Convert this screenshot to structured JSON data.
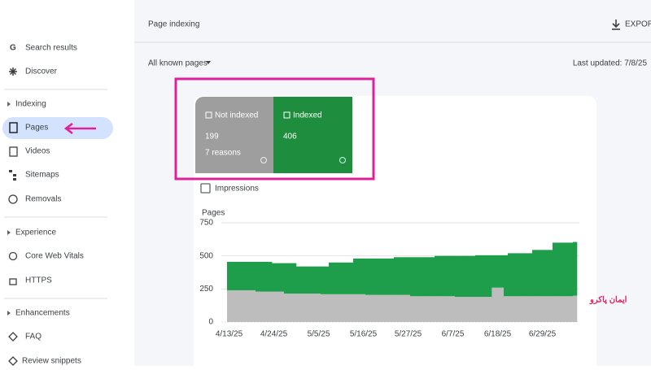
{
  "sidebar": {
    "top": [
      "Search results",
      "Discover"
    ],
    "sections": [
      {
        "title": "Indexing",
        "items": [
          "Pages",
          "Videos",
          "Sitemaps",
          "Removals"
        ]
      },
      {
        "title": "Experience",
        "items": [
          "Core Web Vitals",
          "HTTPS"
        ]
      },
      {
        "title": "Enhancements",
        "items": [
          "FAQ",
          "Review snippets"
        ]
      }
    ]
  },
  "header": {
    "title": "Page indexing",
    "export": "EXPORT"
  },
  "filter": "All known pages",
  "last_updated": "Last updated: 7/8/25",
  "cards": [
    {
      "value": 199,
      "sub": "7 reasons"
    },
    {
      "value": 406
    }
  ],
  "impressions": "Impressions",
  "watermark": "ایمان پاکرو",
  "chart_data": {
    "type": "stacked_bar",
    "y_label": "Pages",
    "ylim": [
      0,
      750
    ],
    "yticks": [
      0,
      250,
      500,
      750
    ],
    "grid": true,
    "categories": [
      "4/13/25",
      null,
      null,
      null,
      null,
      null,
      null,
      null,
      null,
      null,
      null,
      "4/24/25",
      null,
      null,
      null,
      null,
      null,
      null,
      null,
      null,
      null,
      null,
      "5/5/25",
      null,
      null,
      null,
      null,
      null,
      null,
      null,
      null,
      null,
      null,
      "5/16/25",
      null,
      null,
      null,
      null,
      null,
      null,
      null,
      null,
      null,
      null,
      "5/27/25",
      null,
      null,
      null,
      null,
      null,
      null,
      null,
      null,
      null,
      null,
      "6/7/25",
      null,
      null,
      null,
      null,
      null,
      null,
      null,
      null,
      null,
      null,
      "6/18/25",
      null,
      null,
      null,
      null,
      null,
      null,
      null,
      null,
      null,
      null,
      "6/29/25",
      null,
      null,
      null,
      null,
      null,
      null,
      null,
      null
    ],
    "series": [
      {
        "name": "Not indexed",
        "color": "#bdbdbd",
        "values": [
          240,
          240,
          240,
          240,
          240,
          240,
          240,
          230,
          230,
          230,
          230,
          230,
          230,
          230,
          215,
          215,
          215,
          215,
          215,
          215,
          215,
          215,
          215,
          210,
          210,
          210,
          210,
          210,
          210,
          210,
          210,
          210,
          210,
          210,
          205,
          205,
          205,
          205,
          205,
          205,
          205,
          205,
          205,
          205,
          205,
          195,
          195,
          195,
          195,
          195,
          195,
          195,
          195,
          195,
          195,
          195,
          190,
          190,
          190,
          190,
          190,
          190,
          190,
          190,
          190,
          260,
          260,
          260,
          195,
          195,
          195,
          195,
          195,
          195,
          195,
          195,
          195,
          195,
          195,
          195,
          195,
          195,
          195,
          195,
          195,
          199
        ]
      },
      {
        "name": "Indexed",
        "color": "#1e9e4a",
        "values": [
          215,
          215,
          215,
          215,
          215,
          215,
          215,
          225,
          225,
          225,
          225,
          215,
          215,
          215,
          230,
          230,
          230,
          205,
          205,
          205,
          205,
          205,
          205,
          210,
          210,
          240,
          240,
          240,
          240,
          240,
          240,
          270,
          270,
          270,
          275,
          275,
          275,
          275,
          275,
          275,
          275,
          285,
          285,
          285,
          285,
          295,
          295,
          295,
          295,
          295,
          295,
          305,
          305,
          305,
          305,
          305,
          310,
          310,
          310,
          310,
          310,
          315,
          315,
          315,
          315,
          245,
          245,
          245,
          310,
          325,
          325,
          325,
          325,
          325,
          325,
          350,
          350,
          350,
          350,
          350,
          405,
          405,
          405,
          405,
          405,
          406
        ]
      }
    ]
  }
}
